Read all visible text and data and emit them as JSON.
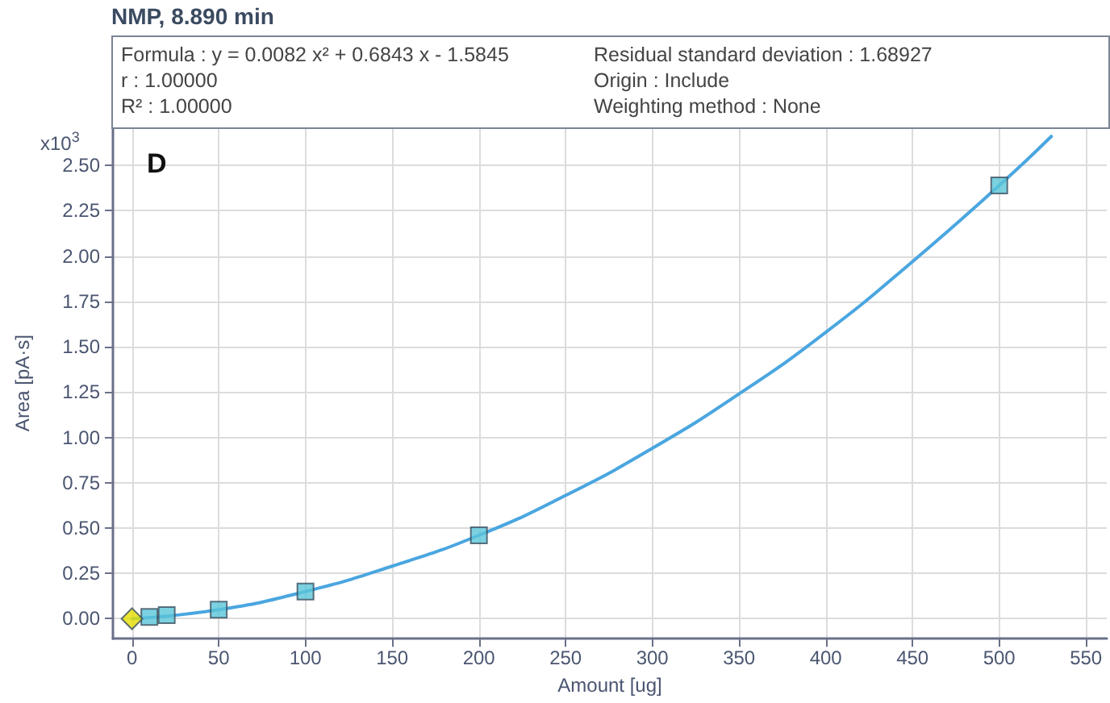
{
  "chart_data": {
    "type": "scatter",
    "title": "NMP, 8.890 min",
    "xlabel": "Amount [ug]",
    "ylabel": "Area [pA·s]",
    "annotations": [
      "Formula : y = 0.0082 x² + 0.6843 x - 1.5845",
      "r : 1.00000",
      "R² : 1.00000",
      "Residual standard deviation : 1.68927",
      "Origin : Include",
      "Weighting method : None",
      "x10$^{3}$",
      "D"
    ],
    "series": [
      {
        "type": "line",
        "color": "#4aa6e0",
        "marker": "none",
        "line_style": "solid",
        "x": [
          0,
          50,
          100,
          150,
          200,
          250,
          300,
          350,
          400,
          450,
          500,
          530
        ],
        "values": [
          0.0,
          0.05,
          0.15,
          0.29,
          0.46,
          0.68,
          0.94,
          1.24,
          1.58,
          1.97,
          2.39,
          2.66
        ]
      },
      {
        "color": "#5bc6d8",
        "marker": "square",
        "x": [
          10,
          20,
          50,
          100,
          200,
          500
        ],
        "values": [
          0.01,
          0.02,
          0.05,
          0.15,
          0.46,
          2.39
        ]
      },
      {
        "color": "#e6e000",
        "marker": "diamond",
        "x": [
          0
        ],
        "values": [
          0.0
        ]
      }
    ],
    "xlim": [
      -11,
      562
    ],
    "xticks": [
      0,
      50,
      100,
      150,
      200,
      250,
      300,
      350,
      400,
      450,
      500,
      550
    ],
    "ylim": [
      -0.11,
      2.71
    ],
    "yticks": [
      {
        "value": 0,
        "label": "0.00"
      },
      {
        "value": 0.25,
        "label": "0.25"
      },
      {
        "value": 0.5,
        "label": "0.50"
      },
      {
        "value": 0.75,
        "label": "0.75"
      },
      {
        "value": 1,
        "label": "1.00"
      },
      {
        "value": 1.25,
        "label": "1.25"
      },
      {
        "value": 1.5,
        "label": "1.50"
      },
      {
        "value": 1.75,
        "label": "1.75"
      },
      {
        "value": 2,
        "label": "2.00"
      },
      {
        "value": 2.25,
        "label": "2.25"
      },
      {
        "value": 2.5,
        "label": "2.50"
      }
    ],
    "grid": true
  }
}
